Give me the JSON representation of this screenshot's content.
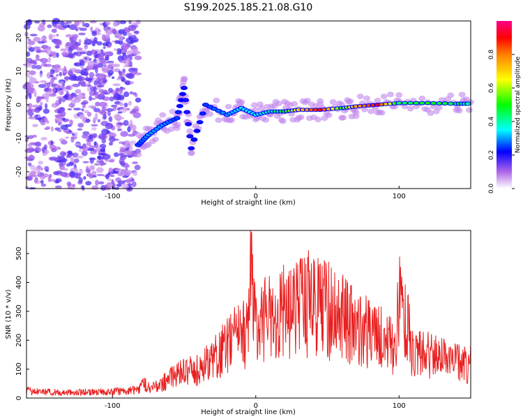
{
  "title": "S199.2025.185.21.08.G10",
  "colors": {
    "snr_line": "#e82020",
    "axis": "#000000",
    "background": "#ffffff",
    "colormap": [
      "#ffffff",
      "#8a2be2",
      "#0000ff",
      "#00ffff",
      "#00ff00",
      "#ffff00",
      "#ff0000",
      "#ff00aa"
    ]
  },
  "chart_data": [
    {
      "type": "heatmap",
      "title": "S199.2025.185.21.08.G10",
      "xlabel": "Height of straight line (km)",
      "ylabel": "Frequency (Hz)",
      "xlim": [
        -160,
        150
      ],
      "ylim": [
        -25,
        25
      ],
      "x_ticks": [
        "-100",
        "0",
        "100"
      ],
      "y_ticks": [
        "-20",
        "-10",
        "0",
        "10",
        "20"
      ],
      "colorbar": {
        "label": "Normalized spectral amplitude",
        "range": [
          0,
          1
        ],
        "ticks": [
          "0.0",
          "0.2",
          "0.4",
          "0.6",
          "0.8"
        ]
      },
      "ridge": [
        {
          "x": -82,
          "y": -12,
          "amp": 0.25
        },
        {
          "x": -75,
          "y": -9,
          "amp": 0.3
        },
        {
          "x": -65,
          "y": -6,
          "amp": 0.3
        },
        {
          "x": -55,
          "y": -4,
          "amp": 0.25
        },
        {
          "x": -50,
          "y": 5,
          "amp": 0.2
        },
        {
          "x": -45,
          "y": -13,
          "amp": 0.2
        },
        {
          "x": -35,
          "y": 0,
          "amp": 0.25
        },
        {
          "x": -20,
          "y": -3,
          "amp": 0.3
        },
        {
          "x": -10,
          "y": -1,
          "amp": 0.35
        },
        {
          "x": 0,
          "y": -3,
          "amp": 0.35
        },
        {
          "x": 10,
          "y": -2,
          "amp": 0.4
        },
        {
          "x": 20,
          "y": -2,
          "amp": 0.5
        },
        {
          "x": 30,
          "y": -1.5,
          "amp": 0.7
        },
        {
          "x": 45,
          "y": -1.5,
          "amp": 0.9
        },
        {
          "x": 60,
          "y": -1,
          "amp": 0.5
        },
        {
          "x": 70,
          "y": -0.5,
          "amp": 0.75
        },
        {
          "x": 85,
          "y": 0,
          "amp": 0.9
        },
        {
          "x": 100,
          "y": 0.5,
          "amp": 0.45
        },
        {
          "x": 120,
          "y": 0.5,
          "amp": 0.5
        },
        {
          "x": 140,
          "y": 0.3,
          "amp": 0.45
        },
        {
          "x": 150,
          "y": 0.3,
          "amp": 0.4
        }
      ]
    },
    {
      "type": "line",
      "xlabel": "Height of straight line (km)",
      "ylabel": "SNR (10 * v/v)",
      "xlim": [
        -160,
        150
      ],
      "ylim": [
        0,
        580
      ],
      "x_ticks": [
        "-100",
        "0",
        "100"
      ],
      "y_ticks": [
        "0",
        "100",
        "200",
        "300",
        "400",
        "500"
      ],
      "series": [
        {
          "x": [
            -160,
            -150,
            -140,
            -130,
            -120,
            -110,
            -100,
            -90,
            -82,
            -78,
            -70,
            -60,
            -50,
            -40,
            -30,
            -20,
            -10,
            -5,
            -3,
            0,
            10,
            20,
            30,
            40,
            50,
            60,
            70,
            80,
            90,
            98,
            100,
            110,
            120,
            130,
            140,
            150
          ],
          "values": [
            30,
            25,
            25,
            22,
            25,
            25,
            28,
            30,
            35,
            60,
            45,
            80,
            110,
            120,
            160,
            220,
            270,
            300,
            590,
            300,
            340,
            360,
            380,
            400,
            370,
            340,
            300,
            270,
            240,
            220,
            430,
            190,
            180,
            160,
            150,
            140
          ]
        }
      ]
    }
  ]
}
